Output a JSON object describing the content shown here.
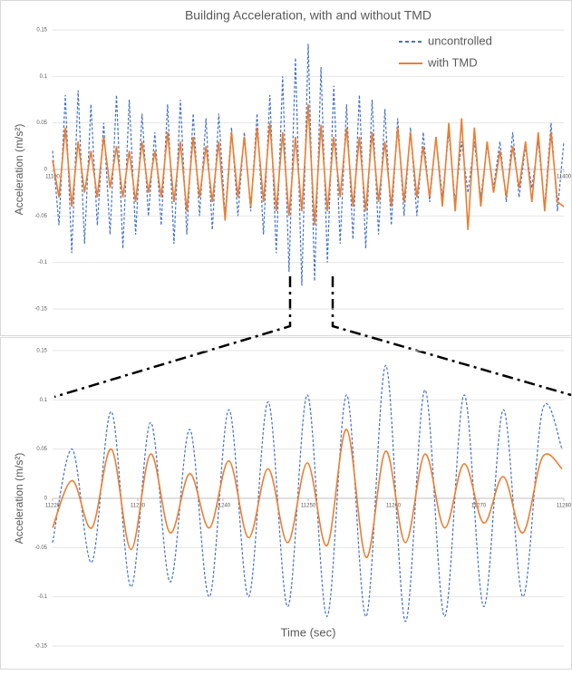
{
  "chart_data": [
    {
      "type": "line",
      "title": "Building Acceleration, with and without TMD",
      "y_label": "Acceleration (m/s²)",
      "legend": "upper right",
      "smooth": false,
      "xlim": [
        11100,
        11400
      ],
      "xticks": [
        11100,
        11400
      ],
      "ylim": [
        -0.15,
        0.15
      ],
      "yticks": [
        0.15,
        0.1,
        0.05,
        0,
        -0.05,
        -0.1,
        -0.15
      ],
      "x": [
        11100,
        11103.75,
        11107.5,
        11111.25,
        11115,
        11118.75,
        11122.5,
        11126.25,
        11130,
        11133.75,
        11137.5,
        11141.25,
        11145,
        11148.75,
        11152.5,
        11156.25,
        11160,
        11163.75,
        11167.5,
        11171.25,
        11175,
        11178.75,
        11182.5,
        11186.25,
        11190,
        11193.75,
        11197.5,
        11201.25,
        11205,
        11208.75,
        11212.5,
        11216.25,
        11220,
        11223.75,
        11227.5,
        11231.25,
        11235,
        11238.75,
        11242.5,
        11246.25,
        11250,
        11253.75,
        11257.5,
        11261.25,
        11265,
        11268.75,
        11272.5,
        11276.25,
        11280,
        11283.75,
        11287.5,
        11291.25,
        11295,
        11298.75,
        11302.5,
        11306.25,
        11310,
        11313.75,
        11317.5,
        11321.25,
        11325,
        11328.75,
        11332.5,
        11336.25,
        11340,
        11343.75,
        11347.5,
        11351.25,
        11355,
        11358.75,
        11362.5,
        11366.25,
        11370,
        11373.75,
        11377.5,
        11381.25,
        11385,
        11388.75,
        11392.5,
        11396.25,
        11400
      ],
      "series": [
        {
          "name": "uncontrolled",
          "color": "#4472c4",
          "dashed": true,
          "values": [
            0.02,
            -0.06,
            0.08,
            -0.09,
            0.085,
            -0.08,
            0.07,
            -0.06,
            0.05,
            -0.07,
            0.08,
            -0.085,
            0.075,
            -0.07,
            0.06,
            -0.05,
            0.04,
            -0.06,
            0.07,
            -0.08,
            0.075,
            -0.07,
            0.06,
            -0.05,
            0.055,
            -0.065,
            0.06,
            -0.05,
            0.045,
            -0.05,
            0.04,
            -0.045,
            0.06,
            -0.07,
            0.08,
            -0.09,
            0.1,
            -0.11,
            0.12,
            -0.125,
            0.135,
            -0.12,
            0.11,
            -0.1,
            0.09,
            -0.08,
            0.07,
            -0.075,
            0.08,
            -0.085,
            0.075,
            -0.07,
            0.065,
            -0.06,
            0.055,
            -0.05,
            0.045,
            -0.05,
            0.04,
            -0.035,
            0.035,
            -0.03,
            0.04,
            -0.035,
            0.03,
            -0.025,
            0.03,
            -0.03,
            0.025,
            -0.02,
            0.03,
            -0.035,
            0.04,
            -0.03,
            0.025,
            -0.02,
            0.03,
            -0.04,
            0.05,
            -0.045,
            0.03
          ]
        },
        {
          "name": "with TMD",
          "color": "#ed7d31",
          "dashed": false,
          "values": [
            0.01,
            -0.03,
            0.045,
            -0.04,
            0.03,
            -0.025,
            0.02,
            -0.03,
            0.035,
            -0.02,
            0.025,
            -0.03,
            0.02,
            -0.035,
            0.03,
            -0.025,
            0.02,
            -0.03,
            0.04,
            -0.035,
            0.03,
            -0.045,
            0.035,
            -0.03,
            0.025,
            -0.035,
            0.03,
            -0.055,
            0.04,
            -0.03,
            0.035,
            -0.04,
            0.045,
            -0.035,
            0.05,
            -0.045,
            0.04,
            -0.05,
            0.035,
            -0.045,
            0.07,
            -0.06,
            0.048,
            -0.045,
            0.035,
            -0.03,
            0.045,
            -0.04,
            0.035,
            -0.045,
            0.04,
            -0.035,
            0.03,
            -0.04,
            0.045,
            -0.035,
            0.04,
            -0.03,
            0.025,
            -0.03,
            0.035,
            -0.04,
            0.05,
            -0.045,
            0.055,
            -0.065,
            0.045,
            -0.04,
            0.03,
            -0.025,
            0.02,
            -0.03,
            0.025,
            -0.02,
            0.03,
            -0.035,
            0.04,
            -0.045,
            0.04,
            -0.035,
            -0.04
          ]
        }
      ]
    },
    {
      "type": "line",
      "y_label": "Acceleration (m/s²)",
      "x_label": "Time (sec)",
      "smooth": true,
      "xlim": [
        11220,
        11280
      ],
      "xticks": [
        11220,
        11230,
        11240,
        11250,
        11260,
        11270,
        11280
      ],
      "ylim": [
        -0.15,
        0.15
      ],
      "yticks": [
        0.15,
        0.1,
        0.05,
        0,
        -0.05,
        -0.1,
        -0.15
      ],
      "x": [
        11220,
        11222.3,
        11224.6,
        11226.9,
        11229.2,
        11231.5,
        11233.8,
        11236.1,
        11238.4,
        11240.7,
        11243,
        11245.3,
        11247.6,
        11249.9,
        11252.2,
        11254.5,
        11256.8,
        11259.1,
        11261.4,
        11263.7,
        11266,
        11268.3,
        11270.6,
        11272.9,
        11275.2,
        11277.5,
        11279.8
      ],
      "series": [
        {
          "color": "#4472c4",
          "dashed": true,
          "values": [
            -0.045,
            0.05,
            -0.065,
            0.088,
            -0.09,
            0.077,
            -0.085,
            0.07,
            -0.1,
            0.09,
            -0.1,
            0.098,
            -0.11,
            0.105,
            -0.12,
            0.105,
            -0.12,
            0.135,
            -0.125,
            0.11,
            -0.12,
            0.105,
            -0.11,
            0.09,
            -0.1,
            0.09,
            0.05
          ]
        },
        {
          "color": "#ed7d31",
          "dashed": false,
          "values": [
            -0.03,
            0.018,
            -0.03,
            0.05,
            -0.052,
            0.045,
            -0.035,
            0.025,
            -0.03,
            0.038,
            -0.04,
            0.03,
            -0.045,
            0.036,
            -0.048,
            0.07,
            -0.06,
            0.048,
            -0.045,
            0.045,
            -0.03,
            0.035,
            -0.025,
            0.022,
            -0.035,
            0.042,
            0.03
          ]
        }
      ]
    }
  ]
}
